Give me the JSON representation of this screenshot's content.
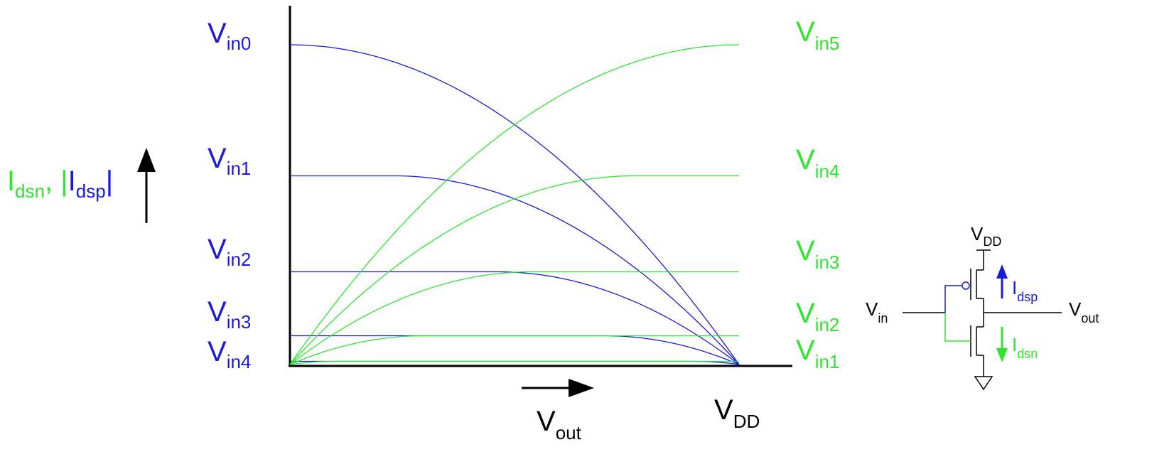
{
  "colors": {
    "blue": "#1a1adb",
    "green": "#2ee62e",
    "black": "#000000"
  },
  "y_axis_label": {
    "i_main": "I",
    "i_sub": "dsn",
    "sep": ",  |",
    "ip_main": "I",
    "ip_sub": "dsp",
    "end": "|"
  },
  "x_axis_label": {
    "main": "V",
    "sub": "out"
  },
  "vdd_label": {
    "main": "V",
    "sub": "DD"
  },
  "left_labels": [
    {
      "main": "V",
      "sub": "in0"
    },
    {
      "main": "V",
      "sub": "in1"
    },
    {
      "main": "V",
      "sub": "in2"
    },
    {
      "main": "V",
      "sub": "in3"
    },
    {
      "main": "V",
      "sub": "in4"
    }
  ],
  "right_labels": [
    {
      "main": "V",
      "sub": "in5"
    },
    {
      "main": "V",
      "sub": "in4"
    },
    {
      "main": "V",
      "sub": "in3"
    },
    {
      "main": "V",
      "sub": "in2"
    },
    {
      "main": "V",
      "sub": "in1"
    }
  ],
  "circuit": {
    "vdd": {
      "main": "V",
      "sub": "DD"
    },
    "vin": {
      "main": "V",
      "sub": "in"
    },
    "vout": {
      "main": "V",
      "sub": "out"
    },
    "idsp": {
      "main": "I",
      "sub": "dsp"
    },
    "idsn": {
      "main": "I",
      "sub": "dsn"
    }
  },
  "chart_data": {
    "type": "line",
    "xlabel": "Vout",
    "ylabel": "Idsn, |Idsp|",
    "pmos_curves_blue": [
      {
        "name": "Vin0",
        "sat_level": 1.0
      },
      {
        "name": "Vin1",
        "sat_level": 0.59
      },
      {
        "name": "Vin2",
        "sat_level": 0.29
      },
      {
        "name": "Vin3",
        "sat_level": 0.09
      },
      {
        "name": "Vin4",
        "sat_level": 0.01
      }
    ],
    "nmos_curves_green": [
      {
        "name": "Vin5",
        "sat_level": 1.0
      },
      {
        "name": "Vin4",
        "sat_level": 0.59
      },
      {
        "name": "Vin3",
        "sat_level": 0.29
      },
      {
        "name": "Vin2",
        "sat_level": 0.09
      },
      {
        "name": "Vin1",
        "sat_level": 0.01
      }
    ]
  }
}
